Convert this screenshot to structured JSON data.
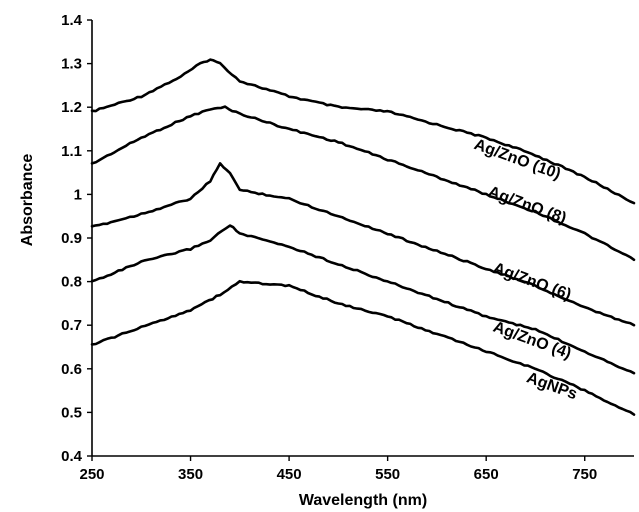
{
  "chart_data": {
    "type": "line",
    "xlabel": "Wavelength (nm)",
    "ylabel": "Absorbance",
    "xlim": [
      250,
      800
    ],
    "ylim": [
      0.4,
      1.4
    ],
    "x_ticks": [
      "250",
      "350",
      "450",
      "550",
      "650",
      "750"
    ],
    "y_ticks": [
      "0.4",
      "0.5",
      "0.6",
      "0.7",
      "0.8",
      "0.9",
      "1",
      "1.1",
      "1.2",
      "1.3",
      "1.4"
    ],
    "grid": false,
    "legend": "inline labels at right end of lines",
    "line_color": "#000000",
    "series": [
      {
        "name": "Ag/ZnO (10)",
        "x": [
          250,
          300,
          340,
          360,
          370,
          380,
          400,
          450,
          500,
          550,
          600,
          650,
          700,
          750,
          800
        ],
        "y": [
          1.19,
          1.225,
          1.27,
          1.3,
          1.31,
          1.3,
          1.26,
          1.225,
          1.2,
          1.19,
          1.16,
          1.13,
          1.09,
          1.04,
          0.98
        ]
      },
      {
        "name": "Ag/ZnO (8)",
        "x": [
          250,
          300,
          350,
          370,
          385,
          400,
          450,
          500,
          550,
          600,
          650,
          700,
          750,
          800
        ],
        "y": [
          1.07,
          1.13,
          1.18,
          1.195,
          1.2,
          1.185,
          1.15,
          1.12,
          1.08,
          1.04,
          1.0,
          0.96,
          0.91,
          0.85
        ]
      },
      {
        "name": "Ag/ZnO (6)",
        "x": [
          250,
          300,
          350,
          370,
          380,
          390,
          400,
          450,
          500,
          550,
          600,
          650,
          700,
          750,
          800
        ],
        "y": [
          0.925,
          0.955,
          0.99,
          1.03,
          1.07,
          1.05,
          1.01,
          0.99,
          0.95,
          0.91,
          0.87,
          0.83,
          0.79,
          0.74,
          0.7
        ]
      },
      {
        "name": "Ag/ZnO (4)",
        "x": [
          250,
          300,
          350,
          370,
          390,
          400,
          450,
          500,
          550,
          600,
          650,
          700,
          750,
          800
        ],
        "y": [
          0.8,
          0.845,
          0.875,
          0.895,
          0.93,
          0.91,
          0.88,
          0.84,
          0.8,
          0.76,
          0.72,
          0.69,
          0.64,
          0.59
        ]
      },
      {
        "name": "AgNPs",
        "x": [
          250,
          300,
          350,
          380,
          400,
          450,
          500,
          550,
          600,
          650,
          700,
          750,
          800
        ],
        "y": [
          0.655,
          0.695,
          0.735,
          0.77,
          0.8,
          0.79,
          0.75,
          0.72,
          0.68,
          0.64,
          0.6,
          0.55,
          0.495
        ]
      }
    ],
    "label_positions": {
      "Ag/ZnO (10)": {
        "x": 680,
        "y": 1.07,
        "rotate": 20
      },
      "Ag/ZnO (8)": {
        "x": 690,
        "y": 0.965,
        "rotate": 20
      },
      "Ag/ZnO (6)": {
        "x": 695,
        "y": 0.79,
        "rotate": 20
      },
      "Ag/ZnO (4)": {
        "x": 695,
        "y": 0.655,
        "rotate": 20
      },
      "AgNPs": {
        "x": 715,
        "y": 0.55,
        "rotate": 20
      }
    }
  }
}
